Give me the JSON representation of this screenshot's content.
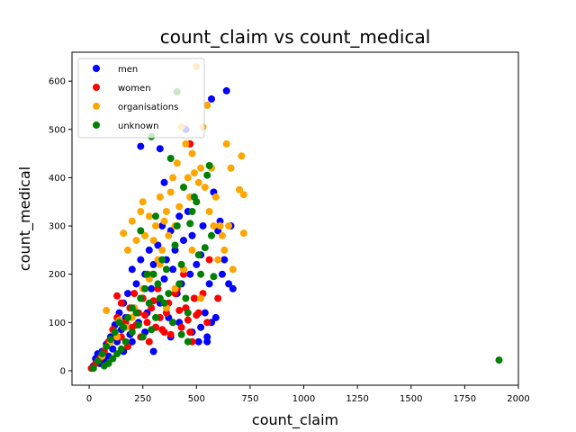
{
  "chart_data": {
    "type": "scatter",
    "title": "count_claim vs count_medical",
    "xlabel": "count_claim",
    "ylabel": "count_medical",
    "xlim": [
      -80,
      2000
    ],
    "ylim": [
      -30,
      660
    ],
    "xticks": [
      0,
      250,
      500,
      750,
      1000,
      1250,
      1500,
      1750,
      2000
    ],
    "yticks": [
      0,
      100,
      200,
      300,
      400,
      500,
      600
    ],
    "grid": false,
    "legend_position": "top-left",
    "series": [
      {
        "name": "men",
        "color": "#0000ff",
        "points": [
          [
            20,
            10
          ],
          [
            30,
            25
          ],
          [
            40,
            35
          ],
          [
            50,
            15
          ],
          [
            60,
            40
          ],
          [
            70,
            20
          ],
          [
            80,
            55
          ],
          [
            90,
            30
          ],
          [
            100,
            70
          ],
          [
            110,
            45
          ],
          [
            120,
            95
          ],
          [
            130,
            60
          ],
          [
            140,
            120
          ],
          [
            150,
            85
          ],
          [
            160,
            140
          ],
          [
            170,
            110
          ],
          [
            180,
            160
          ],
          [
            190,
            75
          ],
          [
            200,
            210
          ],
          [
            210,
            130
          ],
          [
            220,
            180
          ],
          [
            230,
            100
          ],
          [
            240,
            230
          ],
          [
            250,
            150
          ],
          [
            260,
            200
          ],
          [
            270,
            120
          ],
          [
            280,
            250
          ],
          [
            290,
            170
          ],
          [
            300,
            220
          ],
          [
            310,
            90
          ],
          [
            320,
            260
          ],
          [
            330,
            140
          ],
          [
            340,
            300
          ],
          [
            350,
            190
          ],
          [
            360,
            230
          ],
          [
            370,
            110
          ],
          [
            380,
            290
          ],
          [
            390,
            210
          ],
          [
            400,
            250
          ],
          [
            410,
            160
          ],
          [
            420,
            320
          ],
          [
            430,
            180
          ],
          [
            440,
            270
          ],
          [
            450,
            130
          ],
          [
            460,
            330
          ],
          [
            470,
            200
          ],
          [
            480,
            280
          ],
          [
            490,
            150
          ],
          [
            500,
            220
          ],
          [
            510,
            60
          ],
          [
            520,
            240
          ],
          [
            530,
            300
          ],
          [
            540,
            120
          ],
          [
            550,
            70
          ],
          [
            560,
            180
          ],
          [
            570,
            100
          ],
          [
            580,
            370
          ],
          [
            590,
            110
          ],
          [
            600,
            290
          ],
          [
            610,
            310
          ],
          [
            620,
            200
          ],
          [
            630,
            230
          ],
          [
            640,
            580
          ],
          [
            650,
            180
          ],
          [
            660,
            300
          ],
          [
            670,
            170
          ],
          [
            240,
            465
          ],
          [
            330,
            460
          ],
          [
            570,
            563
          ],
          [
            350,
            390
          ],
          [
            450,
            500
          ],
          [
            160,
            40
          ],
          [
            200,
            60
          ],
          [
            260,
            80
          ],
          [
            300,
            40
          ],
          [
            380,
            70
          ],
          [
            420,
            100
          ],
          [
            480,
            80
          ],
          [
            520,
            90
          ],
          [
            550,
            60
          ]
        ]
      },
      {
        "name": "women",
        "color": "#ff0000",
        "points": [
          [
            10,
            5
          ],
          [
            30,
            15
          ],
          [
            50,
            25
          ],
          [
            70,
            40
          ],
          [
            90,
            60
          ],
          [
            110,
            85
          ],
          [
            130,
            110
          ],
          [
            150,
            140
          ],
          [
            170,
            100
          ],
          [
            190,
            130
          ],
          [
            210,
            160
          ],
          [
            230,
            120
          ],
          [
            250,
            150
          ],
          [
            270,
            100
          ],
          [
            290,
            130
          ],
          [
            310,
            90
          ],
          [
            330,
            110
          ],
          [
            350,
            80
          ],
          [
            370,
            140
          ],
          [
            390,
            100
          ],
          [
            410,
            170
          ],
          [
            430,
            90
          ],
          [
            450,
            130
          ],
          [
            470,
            80
          ],
          [
            490,
            150
          ],
          [
            510,
            120
          ],
          [
            530,
            160
          ],
          [
            550,
            100
          ],
          [
            560,
            230
          ],
          [
            600,
            150
          ],
          [
            470,
            470
          ],
          [
            130,
            155
          ],
          [
            200,
            90
          ],
          [
            240,
            70
          ],
          [
            280,
            60
          ],
          [
            320,
            170
          ],
          [
            360,
            120
          ],
          [
            400,
            160
          ],
          [
            440,
            200
          ],
          [
            480,
            60
          ],
          [
            150,
            70
          ],
          [
            180,
            50
          ],
          [
            220,
            95
          ],
          [
            260,
            115
          ],
          [
            300,
            145
          ],
          [
            340,
            85
          ],
          [
            380,
            75
          ],
          [
            420,
            125
          ],
          [
            460,
            105
          ],
          [
            500,
            115
          ]
        ]
      },
      {
        "name": "organisations",
        "color": "#ffa500",
        "points": [
          [
            60,
            30
          ],
          [
            80,
            125
          ],
          [
            100,
            60
          ],
          [
            120,
            80
          ],
          [
            140,
            105
          ],
          [
            160,
            285
          ],
          [
            180,
            250
          ],
          [
            200,
            310
          ],
          [
            220,
            270
          ],
          [
            240,
            330
          ],
          [
            250,
            350
          ],
          [
            260,
            280
          ],
          [
            280,
            320
          ],
          [
            300,
            270
          ],
          [
            310,
            300
          ],
          [
            330,
            360
          ],
          [
            340,
            250
          ],
          [
            350,
            310
          ],
          [
            360,
            330
          ],
          [
            370,
            280
          ],
          [
            380,
            370
          ],
          [
            390,
            400
          ],
          [
            400,
            300
          ],
          [
            410,
            430
          ],
          [
            420,
            340
          ],
          [
            430,
            505
          ],
          [
            440,
            380
          ],
          [
            450,
            470
          ],
          [
            460,
            400
          ],
          [
            470,
            360
          ],
          [
            480,
            450
          ],
          [
            490,
            410
          ],
          [
            500,
            350
          ],
          [
            500,
            630
          ],
          [
            510,
            390
          ],
          [
            520,
            420
          ],
          [
            530,
            505
          ],
          [
            540,
            380
          ],
          [
            550,
            550
          ],
          [
            560,
            330
          ],
          [
            570,
            420
          ],
          [
            580,
            300
          ],
          [
            590,
            360
          ],
          [
            600,
            230
          ],
          [
            610,
            300
          ],
          [
            620,
            280
          ],
          [
            630,
            250
          ],
          [
            640,
            470
          ],
          [
            650,
            300
          ],
          [
            660,
            420
          ],
          [
            670,
            210
          ],
          [
            700,
            375
          ],
          [
            710,
            445
          ],
          [
            720,
            285
          ],
          [
            720,
            365
          ],
          [
            200,
            110
          ],
          [
            240,
            150
          ],
          [
            280,
            190
          ],
          [
            320,
            230
          ],
          [
            360,
            130
          ],
          [
            400,
            170
          ],
          [
            440,
            210
          ],
          [
            480,
            250
          ],
          [
            520,
            150
          ],
          [
            130,
            70
          ],
          [
            170,
            90
          ],
          [
            210,
            130
          ],
          [
            250,
            170
          ],
          [
            290,
            200
          ],
          [
            330,
            220
          ]
        ]
      },
      {
        "name": "unknown",
        "color": "#008000",
        "points": [
          [
            20,
            5
          ],
          [
            40,
            20
          ],
          [
            60,
            35
          ],
          [
            80,
            50
          ],
          [
            100,
            65
          ],
          [
            120,
            80
          ],
          [
            140,
            100
          ],
          [
            160,
            90
          ],
          [
            180,
            110
          ],
          [
            200,
            130
          ],
          [
            220,
            120
          ],
          [
            240,
            150
          ],
          [
            260,
            170
          ],
          [
            280,
            140
          ],
          [
            290,
            485
          ],
          [
            300,
            200
          ],
          [
            310,
            320
          ],
          [
            320,
            180
          ],
          [
            340,
            230
          ],
          [
            360,
            210
          ],
          [
            380,
            440
          ],
          [
            400,
            260
          ],
          [
            410,
            300
          ],
          [
            420,
            180
          ],
          [
            430,
            220
          ],
          [
            440,
            380
          ],
          [
            450,
            150
          ],
          [
            460,
            120
          ],
          [
            470,
            305
          ],
          [
            480,
            330
          ],
          [
            490,
            360
          ],
          [
            500,
            350
          ],
          [
            510,
            240
          ],
          [
            520,
            200
          ],
          [
            540,
            255
          ],
          [
            550,
            405
          ],
          [
            560,
            425
          ],
          [
            570,
            280
          ],
          [
            580,
            195
          ],
          [
            410,
            578
          ],
          [
            1910,
            22
          ],
          [
            240,
            290
          ],
          [
            270,
            200
          ],
          [
            330,
            150
          ],
          [
            370,
            160
          ],
          [
            390,
            100
          ],
          [
            430,
            75
          ],
          [
            460,
            60
          ],
          [
            200,
            80
          ],
          [
            170,
            60
          ],
          [
            150,
            45
          ],
          [
            130,
            35
          ],
          [
            110,
            25
          ],
          [
            90,
            15
          ],
          [
            70,
            10
          ],
          [
            230,
            95
          ],
          [
            250,
            70
          ],
          [
            290,
            85
          ],
          [
            310,
            110
          ],
          [
            350,
            140
          ]
        ]
      }
    ]
  }
}
